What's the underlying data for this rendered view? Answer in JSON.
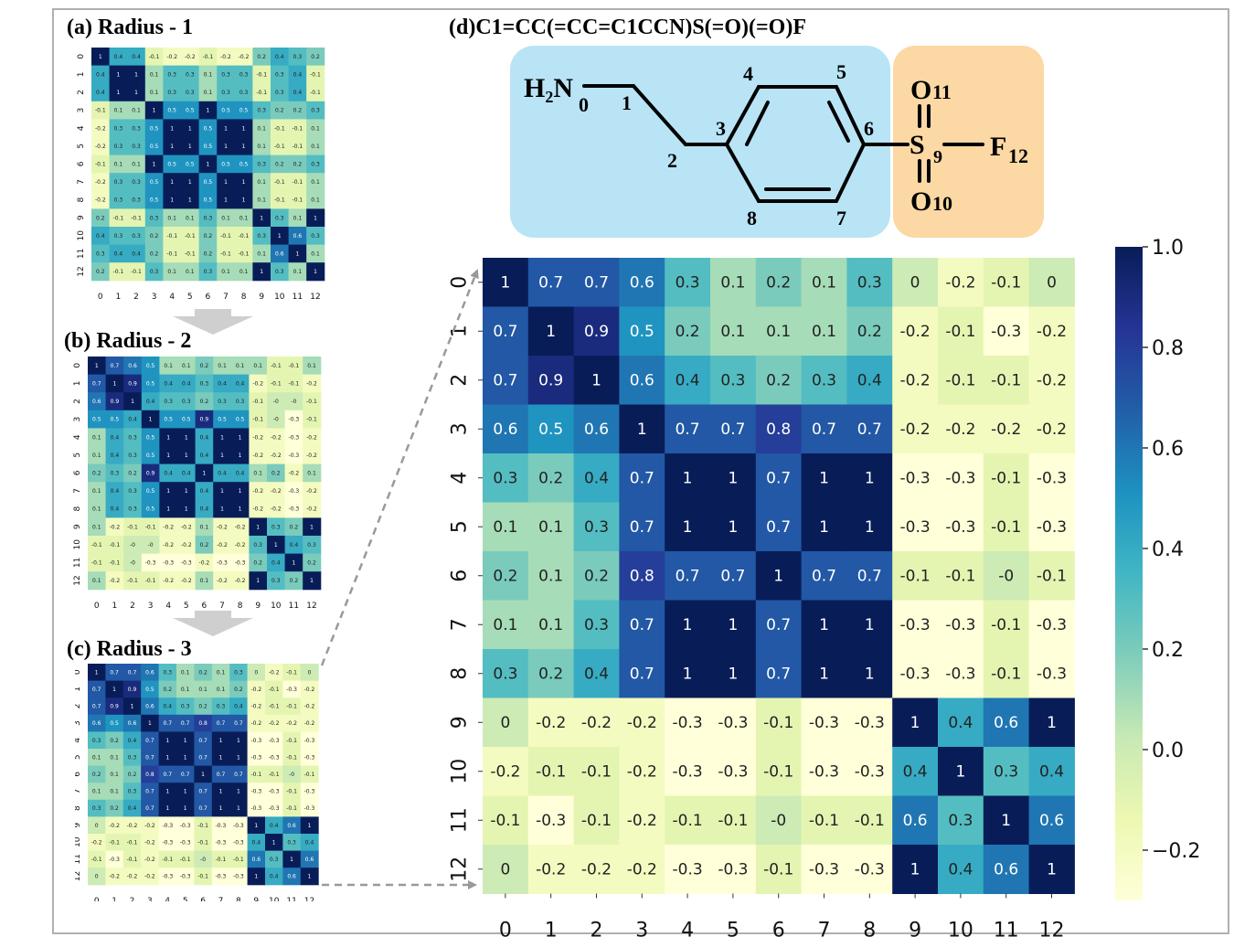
{
  "panels": {
    "a_title": "(a) Radius - 1",
    "b_title": "(b) Radius - 2",
    "c_title": "(c) Radius - 3",
    "d_title": "(d)C1=CC(=CC=C1CCN)S(=O)(=O)F"
  },
  "molecule": {
    "left_region_color": "#b8e4f6",
    "right_region_color": "#fbd8a4",
    "amine_label": "H₂N",
    "atoms": {
      "n0": "0",
      "c1": "1",
      "c2": "2",
      "c3": "3",
      "c4": "4",
      "c5": "5",
      "c6": "6",
      "c7": "7",
      "c8": "8",
      "s9": "9",
      "o10": "10",
      "o11": "11",
      "f12": "12"
    },
    "sulfur": "S",
    "oxygen": "O",
    "fluorine": "F"
  },
  "chart_data": [
    {
      "type": "heatmap",
      "name": "radius-1",
      "categories": [
        "0",
        "1",
        "2",
        "3",
        "4",
        "5",
        "6",
        "7",
        "8",
        "9",
        "10",
        "11",
        "12"
      ],
      "values": [
        [
          1,
          0.4,
          0.4,
          -0.1,
          -0.2,
          -0.2,
          -0.1,
          -0.2,
          -0.2,
          0.2,
          0.4,
          0.3,
          0.2
        ],
        [
          0.4,
          1,
          1,
          0.1,
          0.3,
          0.3,
          0.1,
          0.3,
          0.3,
          -0.1,
          0.3,
          0.4,
          -0.1
        ],
        [
          0.4,
          1,
          1,
          0.1,
          0.3,
          0.3,
          0.1,
          0.3,
          0.3,
          -0.1,
          0.3,
          0.4,
          -0.1
        ],
        [
          -0.1,
          0.1,
          0.1,
          1,
          0.5,
          0.5,
          1,
          0.5,
          0.5,
          0.3,
          0.2,
          0.2,
          0.3
        ],
        [
          -0.2,
          0.3,
          0.3,
          0.5,
          1,
          1,
          0.5,
          1,
          1,
          0.1,
          -0.1,
          -0.1,
          0.1
        ],
        [
          -0.2,
          0.3,
          0.3,
          0.5,
          1,
          1,
          0.5,
          1,
          1,
          0.1,
          -0.1,
          -0.1,
          0.1
        ],
        [
          -0.1,
          0.1,
          0.1,
          1,
          0.5,
          0.5,
          1,
          0.5,
          0.5,
          0.3,
          0.2,
          0.2,
          0.3
        ],
        [
          -0.2,
          0.3,
          0.3,
          0.5,
          1,
          1,
          0.5,
          1,
          1,
          0.1,
          -0.1,
          -0.1,
          0.1
        ],
        [
          -0.2,
          0.3,
          0.3,
          0.5,
          1,
          1,
          0.5,
          1,
          1,
          0.1,
          -0.1,
          -0.1,
          0.1
        ],
        [
          0.2,
          -0.1,
          -0.1,
          0.3,
          0.1,
          0.1,
          0.3,
          0.1,
          0.1,
          1,
          0.3,
          0.1,
          1
        ],
        [
          0.4,
          0.3,
          0.3,
          0.2,
          -0.1,
          -0.1,
          0.2,
          -0.1,
          -0.1,
          0.3,
          1,
          0.6,
          0.3
        ],
        [
          0.3,
          0.4,
          0.4,
          0.2,
          -0.1,
          -0.1,
          0.2,
          -0.1,
          -0.1,
          0.1,
          0.6,
          1,
          0.1
        ],
        [
          0.2,
          -0.1,
          -0.1,
          0.3,
          0.1,
          0.1,
          0.3,
          0.1,
          0.1,
          1,
          0.3,
          0.1,
          1
        ]
      ]
    },
    {
      "type": "heatmap",
      "name": "radius-2",
      "categories": [
        "0",
        "1",
        "2",
        "3",
        "4",
        "5",
        "6",
        "7",
        "8",
        "9",
        "10",
        "11",
        "12"
      ],
      "values": [
        [
          1,
          0.7,
          0.6,
          0.5,
          0.1,
          0.1,
          0.2,
          0.1,
          0.1,
          0.1,
          -0.1,
          -0.1,
          0.1
        ],
        [
          0.7,
          1,
          0.9,
          0.5,
          0.4,
          0.4,
          0.3,
          0.4,
          0.4,
          -0.2,
          -0.1,
          -0.1,
          -0.2
        ],
        [
          0.6,
          0.9,
          1,
          0.4,
          0.3,
          0.3,
          0.2,
          0.3,
          0.3,
          -0.1,
          0,
          0,
          -0.1
        ],
        [
          0.5,
          0.5,
          0.4,
          1,
          0.5,
          0.5,
          0.9,
          0.5,
          0.5,
          -0.1,
          0,
          -0.3,
          -0.1
        ],
        [
          0.1,
          0.4,
          0.3,
          0.5,
          1,
          1,
          0.4,
          1,
          1,
          -0.2,
          -0.2,
          -0.3,
          -0.2
        ],
        [
          0.1,
          0.4,
          0.3,
          0.5,
          1,
          1,
          0.4,
          1,
          1,
          -0.2,
          -0.2,
          -0.3,
          -0.2
        ],
        [
          0.2,
          0.3,
          0.2,
          0.9,
          0.4,
          0.4,
          1,
          0.4,
          0.4,
          0.1,
          0.2,
          -0.2,
          0.1
        ],
        [
          0.1,
          0.4,
          0.3,
          0.5,
          1,
          1,
          0.4,
          1,
          1,
          -0.2,
          -0.2,
          -0.3,
          -0.2
        ],
        [
          0.1,
          0.4,
          0.3,
          0.5,
          1,
          1,
          0.4,
          1,
          1,
          -0.2,
          -0.2,
          -0.3,
          -0.2
        ],
        [
          0.1,
          -0.2,
          -0.1,
          -0.1,
          -0.2,
          -0.2,
          0.1,
          -0.2,
          -0.2,
          1,
          0.3,
          0.2,
          1
        ],
        [
          -0.1,
          -0.1,
          0,
          0,
          -0.2,
          -0.2,
          0.2,
          -0.2,
          -0.2,
          0.3,
          1,
          0.4,
          0.3
        ],
        [
          -0.1,
          -0.1,
          0,
          -0.3,
          -0.3,
          -0.3,
          -0.2,
          -0.3,
          -0.3,
          0.2,
          0.4,
          1,
          0.2
        ],
        [
          0.1,
          -0.2,
          -0.1,
          -0.1,
          -0.2,
          -0.2,
          0.1,
          -0.2,
          -0.2,
          1,
          0.3,
          0.2,
          1
        ]
      ]
    },
    {
      "type": "heatmap",
      "name": "radius-3",
      "categories": [
        "0",
        "1",
        "2",
        "3",
        "4",
        "5",
        "6",
        "7",
        "8",
        "9",
        "10",
        "11",
        "12"
      ],
      "values": [
        [
          1,
          0.7,
          0.7,
          0.6,
          0.3,
          0.1,
          0.2,
          0.1,
          0.3,
          0,
          -0.2,
          -0.1,
          0
        ],
        [
          0.7,
          1,
          0.9,
          0.5,
          0.2,
          0.1,
          0.1,
          0.1,
          0.2,
          -0.2,
          -0.1,
          -0.3,
          -0.2
        ],
        [
          0.7,
          0.9,
          1,
          0.6,
          0.4,
          0.3,
          0.2,
          0.3,
          0.4,
          -0.2,
          -0.1,
          -0.1,
          -0.2
        ],
        [
          0.6,
          0.5,
          0.6,
          1,
          0.7,
          0.7,
          0.8,
          0.7,
          0.7,
          -0.2,
          -0.2,
          -0.2,
          -0.2
        ],
        [
          0.3,
          0.2,
          0.4,
          0.7,
          1,
          1,
          0.7,
          1,
          1,
          -0.3,
          -0.3,
          -0.1,
          -0.3
        ],
        [
          0.1,
          0.1,
          0.3,
          0.7,
          1,
          1,
          0.7,
          1,
          1,
          -0.3,
          -0.3,
          -0.1,
          -0.3
        ],
        [
          0.2,
          0.1,
          0.2,
          0.8,
          0.7,
          0.7,
          1,
          0.7,
          0.7,
          -0.1,
          -0.1,
          0,
          -0.1
        ],
        [
          0.1,
          0.1,
          0.3,
          0.7,
          1,
          1,
          0.7,
          1,
          1,
          -0.3,
          -0.3,
          -0.1,
          -0.3
        ],
        [
          0.3,
          0.2,
          0.4,
          0.7,
          1,
          1,
          0.7,
          1,
          1,
          -0.3,
          -0.3,
          -0.1,
          -0.3
        ],
        [
          0,
          -0.2,
          -0.2,
          -0.2,
          -0.3,
          -0.3,
          -0.1,
          -0.3,
          -0.3,
          1,
          0.4,
          0.6,
          1
        ],
        [
          -0.2,
          -0.1,
          -0.1,
          -0.2,
          -0.3,
          -0.3,
          -0.1,
          -0.3,
          -0.3,
          0.4,
          1,
          0.3,
          0.4
        ],
        [
          -0.1,
          -0.3,
          -0.1,
          -0.2,
          -0.1,
          -0.1,
          0,
          -0.1,
          -0.1,
          0.6,
          0.3,
          1,
          0.6
        ],
        [
          0,
          -0.2,
          -0.2,
          -0.2,
          -0.3,
          -0.3,
          -0.1,
          -0.3,
          -0.3,
          1,
          0.4,
          0.6,
          1
        ]
      ]
    }
  ],
  "colorbar": {
    "ticks": [
      "1.0",
      "0.8",
      "0.6",
      "0.4",
      "0.2",
      "0.0",
      "−0.2"
    ],
    "tick_values": [
      1.0,
      0.8,
      0.6,
      0.4,
      0.2,
      0.0,
      -0.2
    ],
    "range": [
      -0.3,
      1.0
    ],
    "colormap": "YlGnBu"
  }
}
